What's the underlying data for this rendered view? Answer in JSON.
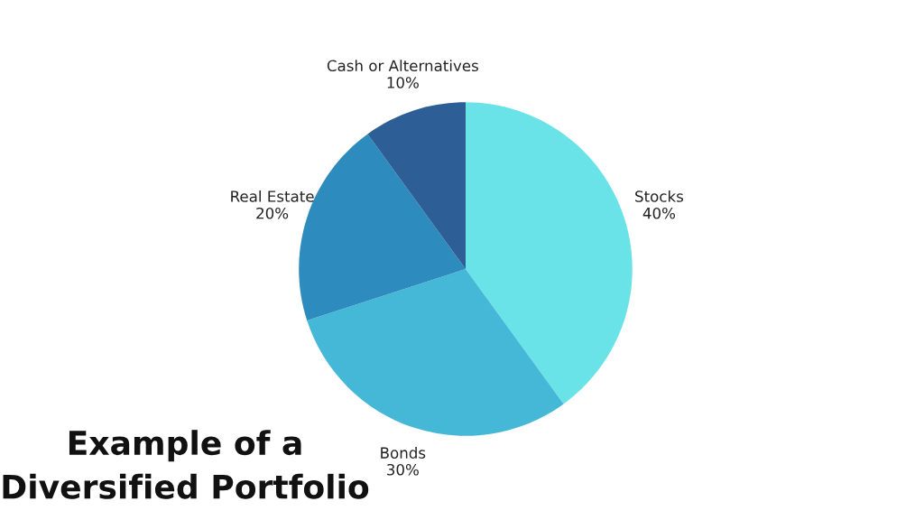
{
  "chart_data": {
    "type": "pie",
    "title": "Example of a\nDiversified Portfolio",
    "categories": [
      "Stocks",
      "Bonds",
      "Real Estate",
      "Cash or Alternatives"
    ],
    "values": [
      40,
      30,
      20,
      10
    ],
    "value_labels": [
      "40%",
      "30%",
      "20%",
      "10%"
    ],
    "colors": [
      "#6ae3e8",
      "#45b8d8",
      "#2e8bbd",
      "#2d5e96"
    ]
  }
}
